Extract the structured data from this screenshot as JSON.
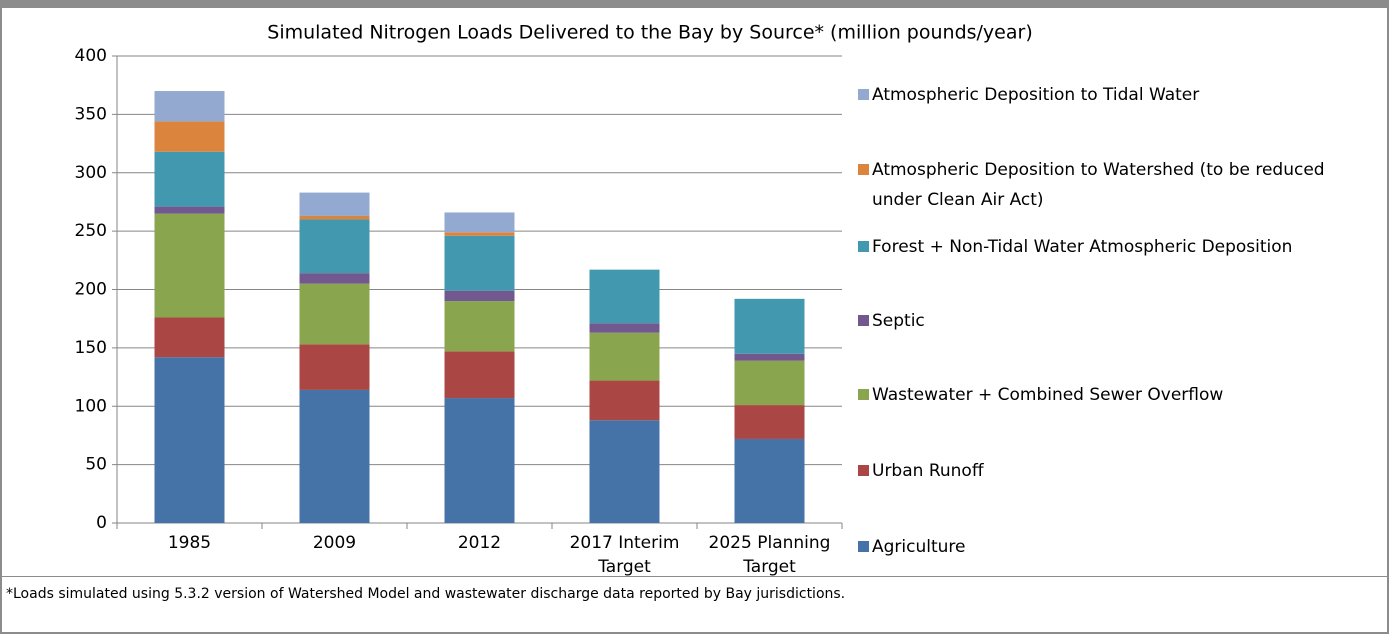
{
  "chart_data": {
    "type": "stacked_bar",
    "title": "Simulated Nitrogen Loads Delivered to the Bay by Source* (million pounds/year)",
    "categories": [
      "1985",
      "2009",
      "2012",
      "2017 Interim Target",
      "2025 Planning Target"
    ],
    "series": [
      {
        "name": "Agriculture",
        "color": "#4572a7",
        "values": [
          142,
          114,
          107,
          88,
          72
        ]
      },
      {
        "name": "Urban Runoff",
        "color": "#aa4643",
        "values": [
          34,
          39,
          40,
          34,
          29
        ]
      },
      {
        "name": "Wastewater + Combined Sewer Overflow",
        "color": "#89a54e",
        "values": [
          89,
          52,
          43,
          41,
          38
        ]
      },
      {
        "name": "Septic",
        "color": "#71588f",
        "values": [
          6,
          9,
          9,
          8,
          6
        ]
      },
      {
        "name": "Forest + Non-Tidal Water Atmospheric Deposition",
        "color": "#4198af",
        "values": [
          47,
          46,
          47,
          46,
          47
        ]
      },
      {
        "name": "Atmospheric Deposition to Watershed (to be reduced under Clean Air Act)",
        "color": "#db843d",
        "values": [
          26,
          3,
          3,
          0,
          0
        ]
      },
      {
        "name": "Atmospheric Deposition to Tidal Water",
        "color": "#93a9cf",
        "values": [
          26,
          20,
          17,
          0,
          0
        ]
      }
    ],
    "ylim": [
      0,
      400
    ],
    "yticks": [
      0,
      50,
      100,
      150,
      200,
      250,
      300,
      350,
      400
    ],
    "grid": true,
    "footnote": "*Loads simulated using 5.3.2 version of Watershed Model and wastewater discharge data reported by Bay jurisdictions."
  }
}
